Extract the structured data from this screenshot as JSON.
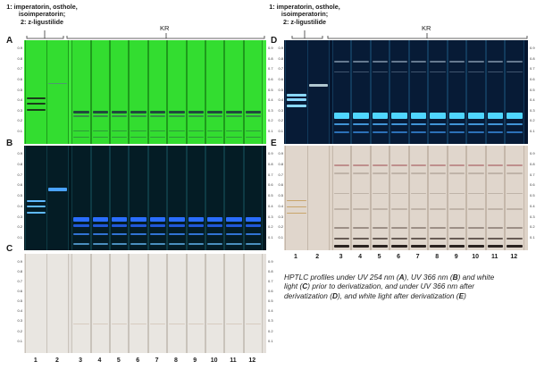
{
  "left_header": {
    "standards_label": [
      "1: imperatorin, osthole,",
      "isoimperatorin;",
      "2: z-ligustilide"
    ],
    "group_label": "KR"
  },
  "right_header": {
    "standards_label": [
      "1: imperatorin, osthole,",
      "isoimperatorin;",
      "2: z-ligustilide"
    ],
    "group_label": "KR"
  },
  "panels": [
    {
      "id": "A",
      "condition": "UV 254 nm"
    },
    {
      "id": "B",
      "condition": "UV 366 nm"
    },
    {
      "id": "C",
      "condition": "white light prior to derivatization"
    },
    {
      "id": "D",
      "condition": "UV 366 nm after derivatization"
    },
    {
      "id": "E",
      "condition": "white light after derivatization"
    }
  ],
  "rf_ticks": [
    "0.9",
    "0.8",
    "0.7",
    "0.6",
    "0.5",
    "0.4",
    "0.3",
    "0.2",
    "0.1"
  ],
  "lane_numbers": [
    "1",
    "2",
    "3",
    "4",
    "5",
    "6",
    "7",
    "8",
    "9",
    "10",
    "11",
    "12"
  ],
  "caption": {
    "lines": [
      [
        "HPTLC profiles under UV 254 nm (",
        "A",
        "), UV 366 nm (",
        "B",
        ") and white"
      ],
      [
        "light (",
        "C",
        ") prior to derivatization, and under UV 366 nm after"
      ],
      [
        "derivatization (",
        "D",
        "), and white light after derivatization (",
        "E",
        ")"
      ]
    ]
  },
  "colors": {
    "uv254_bg": "#3ee63a",
    "uv366_bg": "#03171f",
    "white_bg": "#e4e0db",
    "deriv366_bg": "#05152e",
    "deriv_white_bg": "#ded3c8",
    "accent_blue": "#2a6dff"
  }
}
